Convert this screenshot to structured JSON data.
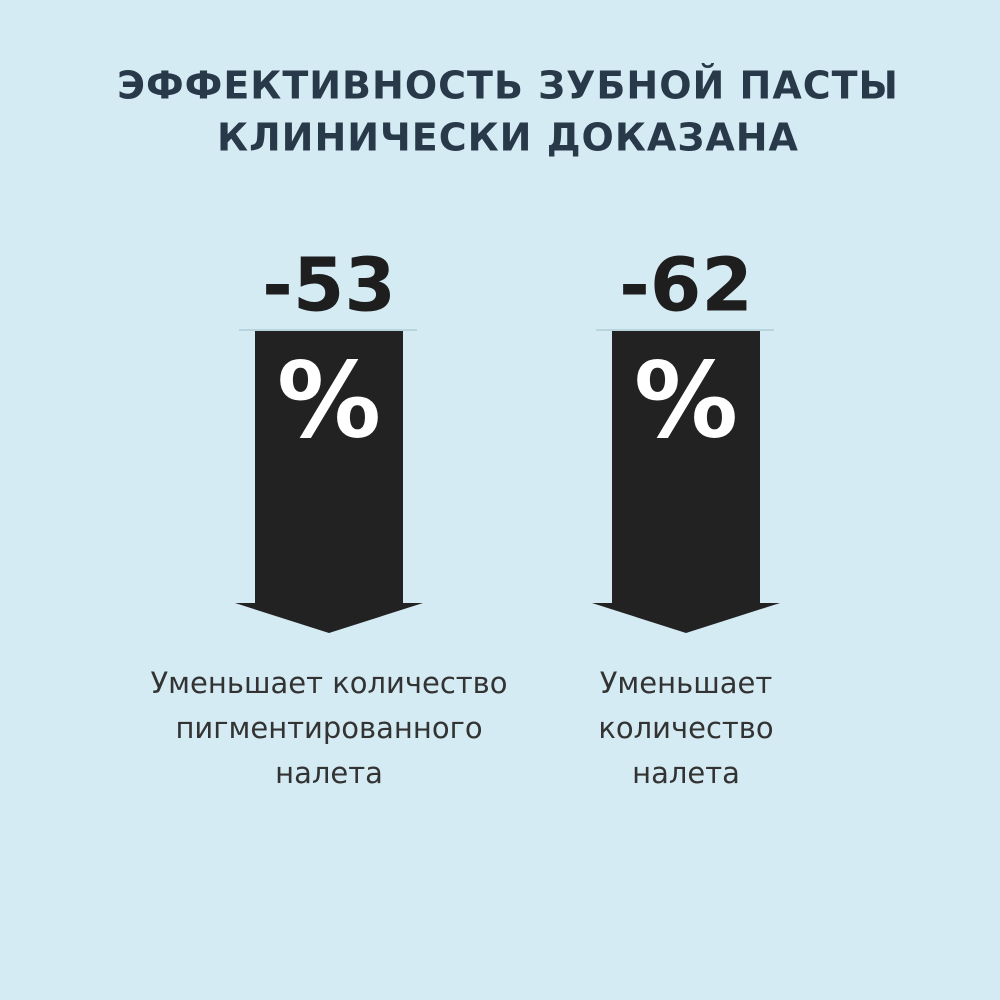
{
  "header": {
    "title_lines": [
      "ЭФФЕКТИВНОСТЬ ЗУБНОЙ ПАСТЫ",
      "КЛИНИЧЕСКИ ДОКАЗАНА"
    ]
  },
  "stats": [
    {
      "value": -53,
      "unit": "%",
      "description_lines": [
        "Уменьшает количество",
        "пигментированного",
        "налета"
      ]
    },
    {
      "value": -62,
      "unit": "%",
      "description_lines": [
        "Уменьшает",
        "количество",
        "налета"
      ]
    }
  ]
}
